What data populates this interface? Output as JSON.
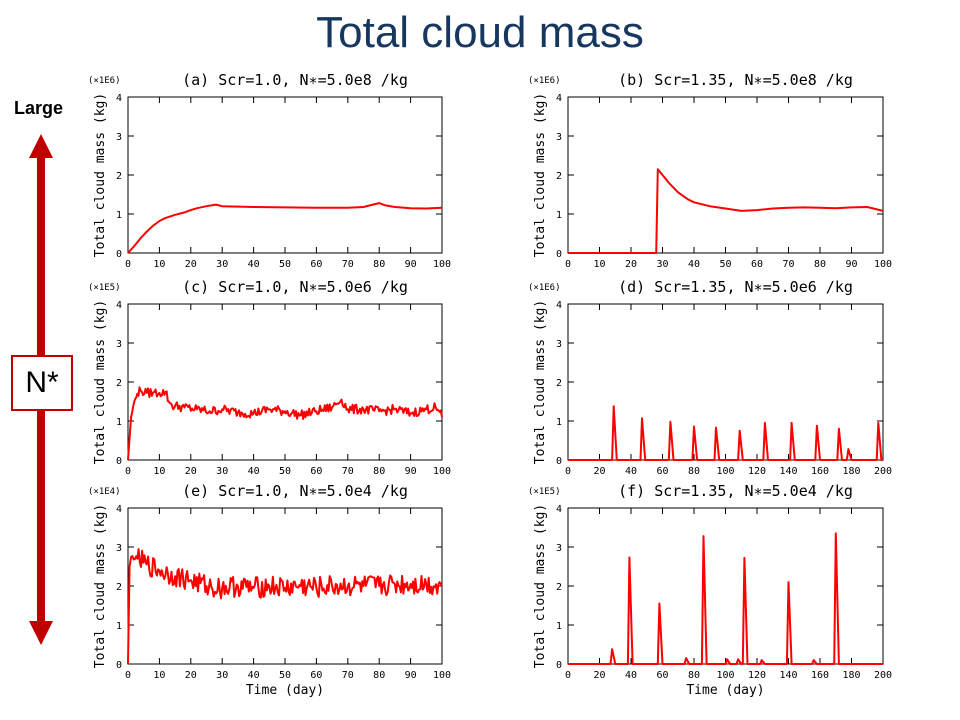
{
  "slide": {
    "title": "Total cloud mass",
    "large_label": "Large",
    "nstar_label": "N*"
  },
  "colors": {
    "title": "#17375e",
    "line": "#ff0000",
    "arrow": "#c00000"
  },
  "chart_data": [
    {
      "id": "a",
      "type": "line",
      "title": "(a) Scr=1.0, N∗=5.0e8 /kg",
      "multiplier": "(×1E6)",
      "ylabel": "Total cloud mass  (kg)",
      "xlabel": "",
      "xlim": [
        0,
        100
      ],
      "ylim": [
        0,
        4
      ],
      "xticks": [
        0,
        10,
        20,
        30,
        40,
        50,
        60,
        70,
        80,
        90,
        100
      ],
      "yticks": [
        0,
        1,
        2,
        3,
        4
      ],
      "x": [
        0,
        2,
        4,
        6,
        8,
        10,
        12,
        15,
        18,
        20,
        22,
        25,
        28,
        30,
        35,
        40,
        50,
        60,
        70,
        75,
        78,
        80,
        82,
        85,
        90,
        95,
        100
      ],
      "y": [
        0,
        0.18,
        0.38,
        0.55,
        0.7,
        0.82,
        0.9,
        0.98,
        1.04,
        1.1,
        1.15,
        1.2,
        1.24,
        1.2,
        1.19,
        1.18,
        1.17,
        1.16,
        1.16,
        1.18,
        1.24,
        1.28,
        1.22,
        1.18,
        1.15,
        1.14,
        1.16
      ]
    },
    {
      "id": "b",
      "type": "line",
      "title": "(b) Scr=1.35, N∗=5.0e8 /kg",
      "multiplier": "(×1E6)",
      "ylabel": "Total cloud mass  (kg)",
      "xlabel": "",
      "xlim": [
        0,
        100
      ],
      "ylim": [
        0,
        4
      ],
      "xticks": [
        0,
        10,
        20,
        30,
        40,
        50,
        60,
        70,
        80,
        90,
        100
      ],
      "yticks": [
        0,
        1,
        2,
        3,
        4
      ],
      "x": [
        0,
        28,
        28.5,
        29,
        30,
        32,
        35,
        38,
        40,
        45,
        50,
        55,
        60,
        65,
        70,
        75,
        80,
        85,
        90,
        95,
        100
      ],
      "y": [
        0,
        0,
        2.15,
        2.1,
        2.0,
        1.8,
        1.55,
        1.38,
        1.3,
        1.2,
        1.14,
        1.08,
        1.1,
        1.14,
        1.16,
        1.17,
        1.16,
        1.15,
        1.17,
        1.18,
        1.08
      ]
    },
    {
      "id": "c",
      "type": "line",
      "title": "(c) Scr=1.0, N∗=5.0e6 /kg",
      "multiplier": "(×1E5)",
      "ylabel": "Total cloud mass  (kg)",
      "xlabel": "",
      "xlim": [
        0,
        100
      ],
      "ylim": [
        0,
        4
      ],
      "xticks": [
        0,
        10,
        20,
        30,
        40,
        50,
        60,
        70,
        80,
        90,
        100
      ],
      "yticks": [
        0,
        1,
        2,
        3,
        4
      ],
      "x": [
        0,
        1,
        2,
        3,
        4,
        6,
        8,
        10,
        12,
        13,
        14,
        18,
        22,
        26,
        30,
        35,
        40,
        45,
        50,
        55,
        60,
        65,
        68,
        70,
        75,
        80,
        85,
        90,
        95,
        98,
        100
      ],
      "y": [
        0,
        1.1,
        1.5,
        1.7,
        1.78,
        1.72,
        1.73,
        1.72,
        1.75,
        1.5,
        1.4,
        1.35,
        1.3,
        1.25,
        1.3,
        1.22,
        1.2,
        1.3,
        1.25,
        1.15,
        1.25,
        1.35,
        1.55,
        1.3,
        1.3,
        1.25,
        1.3,
        1.2,
        1.3,
        1.35,
        1.1
      ]
    },
    {
      "id": "d",
      "type": "line",
      "title": "(d) Scr=1.35, N∗=5.0e6 /kg",
      "multiplier": "(×1E6)",
      "ylabel": "Total cloud mass  (kg)",
      "xlabel": "",
      "xlim": [
        0,
        200
      ],
      "ylim": [
        0,
        4
      ],
      "xticks": [
        0,
        20,
        40,
        60,
        80,
        100,
        120,
        140,
        160,
        180,
        200
      ],
      "yticks": [
        0,
        1,
        2,
        3,
        4
      ],
      "x": [
        0,
        28,
        29,
        31,
        46,
        47,
        49,
        64,
        65,
        67,
        79,
        80,
        82,
        93,
        94,
        96,
        108,
        109,
        111,
        124,
        125,
        127,
        141,
        142,
        144,
        157,
        158,
        160,
        171,
        172,
        174,
        177,
        178,
        180,
        196,
        197,
        199,
        200
      ],
      "y": [
        0,
        0,
        1.38,
        0,
        0,
        1.07,
        0,
        0,
        0.98,
        0,
        0,
        0.86,
        0,
        0,
        0.83,
        0,
        0,
        0.75,
        0,
        0,
        0.95,
        0,
        0,
        0.95,
        0,
        0,
        0.88,
        0,
        0,
        0.8,
        0,
        0,
        0.28,
        0,
        0,
        0.95,
        0,
        0
      ]
    },
    {
      "id": "e",
      "type": "line",
      "title": "(e) Scr=1.0, N∗=5.0e4 /kg",
      "multiplier": "(×1E4)",
      "ylabel": "Total cloud mass  (kg)",
      "xlabel": "Time  (day)",
      "xlim": [
        0,
        100
      ],
      "ylim": [
        0,
        4
      ],
      "xticks": [
        0,
        10,
        20,
        30,
        40,
        50,
        60,
        70,
        80,
        90,
        100
      ],
      "yticks": [
        0,
        1,
        2,
        3,
        4
      ],
      "x": [
        0,
        0.5,
        1,
        3,
        6,
        10,
        15,
        20,
        25,
        30,
        35,
        40,
        45,
        50,
        55,
        60,
        65,
        70,
        75,
        80,
        85,
        90,
        95,
        100
      ],
      "y": [
        0,
        2.5,
        2.75,
        2.7,
        2.55,
        2.4,
        2.25,
        2.15,
        2.0,
        1.95,
        2.0,
        1.95,
        2.0,
        1.95,
        2.0,
        1.95,
        2.0,
        2.0,
        2.0,
        2.0,
        2.05,
        2.05,
        2.05,
        2.0
      ]
    },
    {
      "id": "f",
      "type": "line",
      "title": "(f) Scr=1.35, N∗=5.0e4 /kg",
      "multiplier": "(×1E5)",
      "ylabel": "Total cloud mass  (kg)",
      "xlabel": "Time  (day)",
      "xlim": [
        0,
        200
      ],
      "ylim": [
        0,
        4
      ],
      "xticks": [
        0,
        20,
        40,
        60,
        80,
        100,
        120,
        140,
        160,
        180,
        200
      ],
      "yticks": [
        0,
        1,
        2,
        3,
        4
      ],
      "x": [
        0,
        27,
        28,
        30,
        38,
        39,
        41,
        57,
        58,
        60,
        74,
        75,
        77,
        85,
        86,
        88,
        100,
        101,
        103,
        107,
        108,
        110,
        111,
        112,
        114,
        122,
        123,
        125,
        139,
        140,
        142,
        155,
        156,
        158,
        169,
        170,
        172,
        200
      ],
      "y": [
        0,
        0,
        0.38,
        0,
        0,
        2.73,
        0,
        0,
        1.55,
        0,
        0,
        0.15,
        0,
        0,
        3.28,
        0,
        0,
        0.12,
        0,
        0,
        0.12,
        0,
        0,
        2.72,
        0,
        0,
        0.1,
        0,
        0,
        2.1,
        0,
        0,
        0.1,
        0,
        0,
        3.35,
        0,
        0
      ]
    }
  ]
}
